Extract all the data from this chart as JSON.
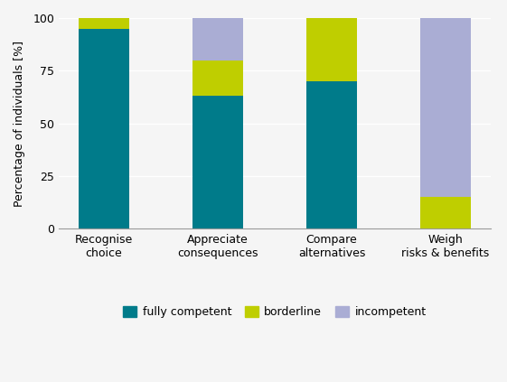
{
  "categories": [
    "Recognise\nchoice",
    "Appreciate\nconsequences",
    "Compare\nalternatives",
    "Weigh\nrisks & benefits"
  ],
  "fully_competent": [
    95,
    63,
    70,
    0
  ],
  "borderline": [
    5,
    17,
    30,
    15
  ],
  "incompetent": [
    0,
    20,
    0,
    85
  ],
  "color_fully": "#007B8A",
  "color_borderline": "#BFCE00",
  "color_incompetent": "#AAADD4",
  "ylabel": "Percentage of individuals [%]",
  "yticks": [
    0,
    25,
    50,
    75,
    100
  ],
  "legend_labels": [
    "fully competent",
    "borderline",
    "incompetent"
  ],
  "bar_width": 0.45,
  "figsize": [
    5.61,
    4.23
  ],
  "dpi": 100,
  "bg_color": "#f5f5f5"
}
